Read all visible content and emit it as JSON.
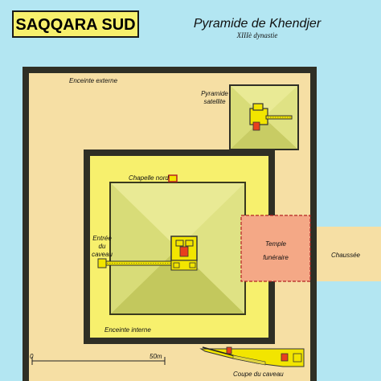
{
  "header": {
    "site_label": "SAQQARA SUD",
    "title": "Pyramide de Khendjer",
    "subtitle": "XIIIè dynastie"
  },
  "labels": {
    "outer_wall": "Enceinte externe",
    "inner_wall": "Enceinte interne",
    "satellite_line1": "Pyramide",
    "satellite_line2": "satellite",
    "north_chapel": "Chapelle nord",
    "entrance_line1": "Entrée",
    "entrance_line2": "du",
    "entrance_line3": "caveau",
    "temple_line1": "Temple",
    "temple_line2": "funéraire",
    "causeway": "Chaussée",
    "section": "Coupe du caveau"
  },
  "scale_bar": {
    "start_label": "0",
    "end_label": "50m"
  },
  "colors": {
    "background": "#b3e6f2",
    "outer_enclosure": "#f6dfa4",
    "inner_enclosure": "#f7f06d",
    "pyramid_light": "#e6e78f",
    "pyramid_mid": "#d8dc78",
    "pyramid_dark": "#c3c85d",
    "temple": "#f4a886",
    "chamber": "#f2e500",
    "sarcophagus": "#e8401d",
    "wall_stroke": "#3a3a1e",
    "temple_border": "#b52222"
  }
}
